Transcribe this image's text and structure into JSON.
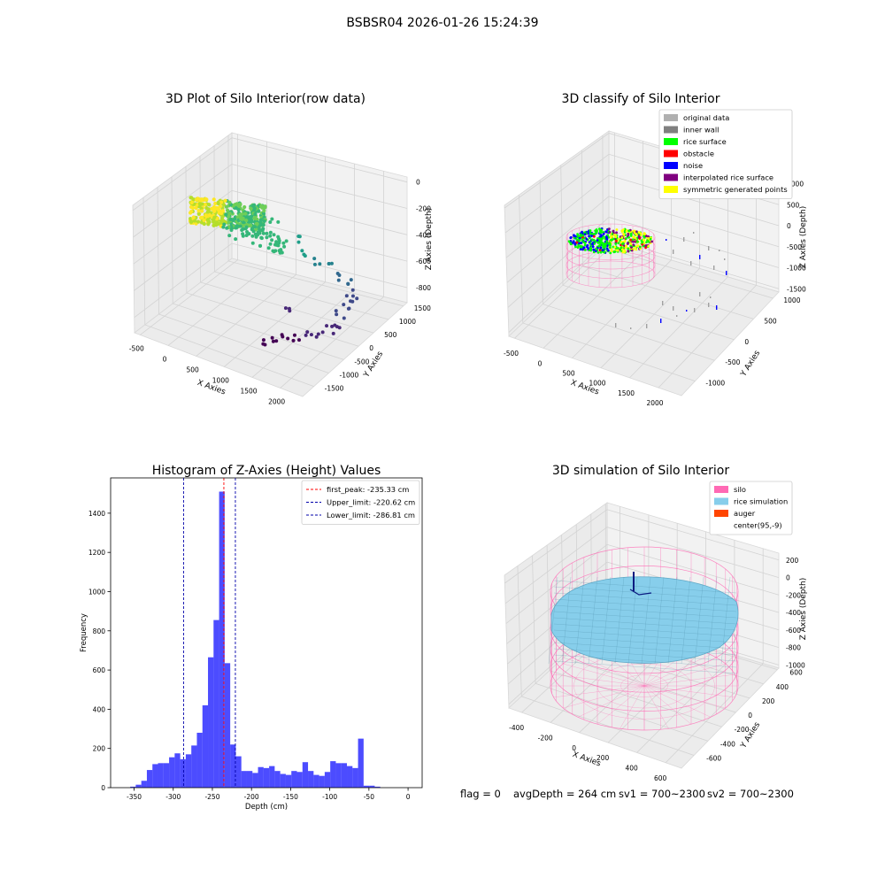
{
  "suptitle": "BSBSR04 2026-01-26 15:24:39",
  "footer": {
    "flag": "flag = 0",
    "avg_depth": "avgDepth = 264 cm",
    "sv1": "sv1 = 700~2300",
    "sv2": "sv2 = 700~2300"
  },
  "panels": {
    "raw": {
      "title": "3D Plot of Silo Interior(row data)",
      "xlabel": "X Axies",
      "ylabel": "Y Axies",
      "zlabel": "Z Axies (Depth)",
      "xticks": [
        "-500",
        "0",
        "500",
        "1000",
        "1500",
        "2000"
      ],
      "yticks": [
        "1500",
        "1000",
        "500",
        "0",
        "-500",
        "-1000",
        "-1500"
      ],
      "zticks": [
        "0",
        "-200",
        "-400",
        "-600",
        "-800"
      ]
    },
    "classify": {
      "title": "3D classify of Silo Interior",
      "xlabel": "X Axies",
      "ylabel": "Y Axies",
      "zlabel": "Z Axies (Depth)",
      "xticks": [
        "-500",
        "0",
        "500",
        "1000",
        "1500",
        "2000"
      ],
      "yticks": [
        "1000",
        "500",
        "0",
        "-500",
        "-1000"
      ],
      "zticks": [
        "1000",
        "500",
        "0",
        "-500",
        "-1000",
        "-1500"
      ],
      "legend": [
        {
          "label": "original data",
          "color": "#b0b0b0"
        },
        {
          "label": "inner wall",
          "color": "#808080"
        },
        {
          "label": "rice surface",
          "color": "#00ff00"
        },
        {
          "label": "obstacle",
          "color": "#ff0000"
        },
        {
          "label": "noise",
          "color": "#0000ff"
        },
        {
          "label": "interpolated rice surface",
          "color": "#800080"
        },
        {
          "label": "symmetric generated points",
          "color": "#ffff00"
        }
      ]
    },
    "sim": {
      "title": "3D simulation of Silo Interior",
      "xlabel": "X Axies",
      "ylabel": "Y Axies",
      "zlabel": "Z Axies (Depth)",
      "xticks": [
        "-400",
        "-200",
        "0",
        "200",
        "400",
        "600"
      ],
      "yticks": [
        "600",
        "400",
        "200",
        "0",
        "-200",
        "-400",
        "-600"
      ],
      "zticks": [
        "200",
        "0",
        "-200",
        "-400",
        "-600",
        "-800",
        "-1000"
      ],
      "legend": [
        {
          "label": "silo",
          "color": "#ff69b4"
        },
        {
          "label": "rice simulation",
          "color": "#87ceeb"
        },
        {
          "label": "auger",
          "color": "#ff4500"
        },
        {
          "label": "center(95,-9)",
          "color": "#ffffff"
        }
      ]
    }
  },
  "chart_data": {
    "type": "bar",
    "title": "Histogram of Z-Axies (Height) Values",
    "xlabel": "Depth (cm)",
    "ylabel": "Frequency",
    "xlim": [
      -380,
      18
    ],
    "ylim": [
      0,
      1580
    ],
    "xticks": [
      -350,
      -300,
      -250,
      -200,
      -150,
      -100,
      -50,
      0
    ],
    "yticks": [
      0,
      200,
      400,
      600,
      800,
      1000,
      1200,
      1400
    ],
    "bar_color": "#0000ff",
    "bin_edges_start": -355,
    "bin_width": 7.1,
    "values": [
      5,
      15,
      35,
      90,
      120,
      125,
      125,
      155,
      175,
      145,
      170,
      215,
      280,
      420,
      665,
      855,
      1510,
      635,
      220,
      160,
      85,
      85,
      75,
      105,
      100,
      110,
      85,
      70,
      65,
      85,
      80,
      130,
      85,
      65,
      60,
      80,
      135,
      125,
      125,
      110,
      100,
      250,
      10,
      10,
      5,
      0,
      0,
      0,
      0,
      0
    ],
    "vlines": [
      {
        "label": "first_peak: -235.33 cm",
        "x": -235.33,
        "color": "#ff0000"
      },
      {
        "label": "Upper_limit: -220.62 cm",
        "x": -220.62,
        "color": "#0000aa"
      },
      {
        "label": "Lower_limit: -286.81 cm",
        "x": -286.81,
        "color": "#0000aa"
      }
    ],
    "legend_position": "top-right",
    "grid": false
  }
}
